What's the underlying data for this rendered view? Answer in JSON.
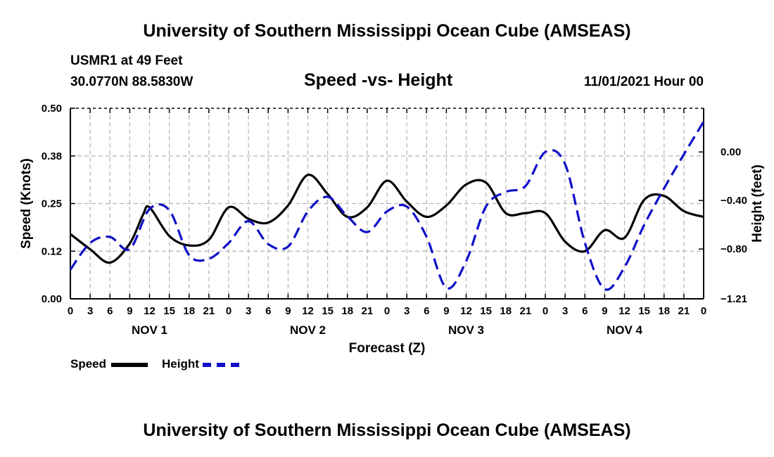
{
  "header": {
    "title": "University of Southern Mississippi Ocean Cube (AMSEAS)",
    "station": "USMR1 at 49 Feet",
    "coords": "30.0770N  88.5830W",
    "chart_title": "Speed -vs- Height",
    "datetime": "11/01/2021 Hour 00"
  },
  "footer": {
    "title": "University of Southern Mississippi Ocean Cube (AMSEAS)"
  },
  "legend": {
    "speed_label": "Speed",
    "height_label": "Height"
  },
  "colors": {
    "speed": "#000000",
    "height": "#1010c8",
    "grid": "#b4b4b4"
  },
  "chart_data": {
    "type": "line",
    "title": "Speed -vs- Height",
    "xlabel": "Forecast (Z)",
    "ylabel_left": "Speed (Knots)",
    "ylabel_right": "Height (feet)",
    "x_unit": "hours since 11/01/2021 00Z",
    "xlim": [
      0,
      96
    ],
    "x_ticks": [
      0,
      3,
      6,
      9,
      12,
      15,
      18,
      21,
      24,
      27,
      30,
      33,
      36,
      39,
      42,
      45,
      48,
      51,
      54,
      57,
      60,
      63,
      66,
      69,
      72,
      75,
      78,
      81,
      84,
      87,
      90,
      93,
      96
    ],
    "x_tick_labels": [
      "0",
      "3",
      "6",
      "9",
      "12",
      "15",
      "18",
      "21",
      "0",
      "3",
      "6",
      "9",
      "12",
      "15",
      "18",
      "21",
      "0",
      "3",
      "6",
      "9",
      "12",
      "15",
      "18",
      "21",
      "0",
      "3",
      "6",
      "9",
      "12",
      "15",
      "18",
      "21",
      "0"
    ],
    "day_labels": [
      {
        "label": "NOV 1",
        "x": 12
      },
      {
        "label": "NOV 2",
        "x": 36
      },
      {
        "label": "NOV 3",
        "x": 60
      },
      {
        "label": "NOV 4",
        "x": 84
      }
    ],
    "y_left": {
      "lim": [
        0.0,
        0.5
      ],
      "ticks": [
        0.0,
        0.125,
        0.25,
        0.375,
        0.5
      ],
      "tick_labels": [
        "0.00",
        "0.12",
        "0.25",
        "0.38",
        "0.50"
      ]
    },
    "y_right": {
      "lim": [
        -1.21,
        0.36
      ],
      "ticks": [
        -1.21,
        -0.8,
        -0.4,
        0.0
      ],
      "tick_labels": [
        "−1.21",
        "−0.80",
        "−0.40",
        "0.00"
      ]
    },
    "grid": true,
    "series": [
      {
        "name": "Speed",
        "axis": "left",
        "style": "solid",
        "x": [
          0,
          3,
          6,
          9,
          11,
          12,
          15,
          18,
          21,
          24,
          27,
          30,
          33,
          36,
          39,
          42,
          45,
          48,
          51,
          54,
          57,
          60,
          63,
          66,
          69,
          72,
          75,
          78,
          81,
          84,
          87,
          90,
          93,
          96
        ],
        "values": [
          0.17,
          0.13,
          0.095,
          0.145,
          0.22,
          0.24,
          0.165,
          0.14,
          0.155,
          0.24,
          0.21,
          0.2,
          0.245,
          0.325,
          0.275,
          0.215,
          0.24,
          0.31,
          0.255,
          0.215,
          0.245,
          0.3,
          0.305,
          0.225,
          0.225,
          0.225,
          0.15,
          0.125,
          0.18,
          0.16,
          0.26,
          0.27,
          0.23,
          0.215
        ]
      },
      {
        "name": "Height",
        "axis": "right",
        "style": "dashed",
        "x": [
          0,
          3,
          6,
          9,
          12,
          15,
          18,
          21,
          24,
          27,
          30,
          33,
          36,
          39,
          42,
          45,
          48,
          51,
          54,
          57,
          60,
          63,
          66,
          69,
          72,
          75,
          78,
          81,
          84,
          87,
          90,
          93,
          96
        ],
        "values": [
          -0.97,
          -0.75,
          -0.7,
          -0.8,
          -0.47,
          -0.48,
          -0.85,
          -0.88,
          -0.75,
          -0.57,
          -0.76,
          -0.78,
          -0.49,
          -0.37,
          -0.53,
          -0.66,
          -0.49,
          -0.45,
          -0.7,
          -1.12,
          -0.9,
          -0.45,
          -0.33,
          -0.28,
          0.0,
          -0.1,
          -0.75,
          -1.13,
          -0.95,
          -0.6,
          -0.3,
          -0.02,
          0.25
        ]
      }
    ]
  }
}
